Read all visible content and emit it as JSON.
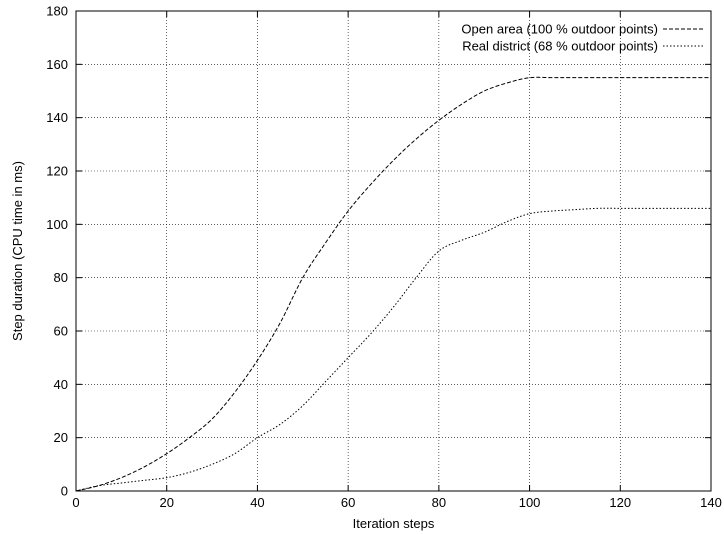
{
  "chart_data": {
    "type": "line",
    "title": "",
    "xlabel": "Iteration steps",
    "ylabel": "Step duration (CPU time in ms)",
    "xlim": [
      0,
      140
    ],
    "ylim": [
      0,
      180
    ],
    "xticks": [
      0,
      20,
      40,
      60,
      80,
      100,
      120,
      140
    ],
    "yticks": [
      0,
      20,
      40,
      60,
      80,
      100,
      120,
      140,
      160,
      180
    ],
    "grid": true,
    "legend_position": "top-right",
    "series": [
      {
        "name": "Open area (100 % outdoor points)",
        "dash": "dashed",
        "x": [
          0,
          5,
          10,
          15,
          20,
          25,
          30,
          35,
          40,
          45,
          50,
          55,
          60,
          65,
          70,
          75,
          80,
          85,
          90,
          95,
          100,
          105,
          110,
          120,
          130,
          140
        ],
        "y": [
          0,
          2,
          5,
          9,
          14,
          20,
          27,
          37,
          49,
          63,
          80,
          93,
          105,
          115,
          124,
          132,
          139,
          145,
          150,
          153,
          155,
          155,
          155,
          155,
          155,
          155
        ]
      },
      {
        "name": "Real district (68 % outdoor points)",
        "dash": "dotted",
        "x": [
          0,
          5,
          10,
          15,
          20,
          25,
          30,
          35,
          40,
          45,
          50,
          55,
          60,
          65,
          70,
          75,
          80,
          85,
          90,
          95,
          100,
          105,
          110,
          115,
          120,
          130,
          140
        ],
        "y": [
          0,
          2,
          3,
          4,
          5,
          7,
          10,
          14,
          20,
          25,
          32,
          41,
          50,
          59,
          69,
          80,
          90,
          94,
          97,
          101,
          104,
          105,
          105.5,
          106,
          106,
          106,
          106
        ]
      }
    ]
  }
}
